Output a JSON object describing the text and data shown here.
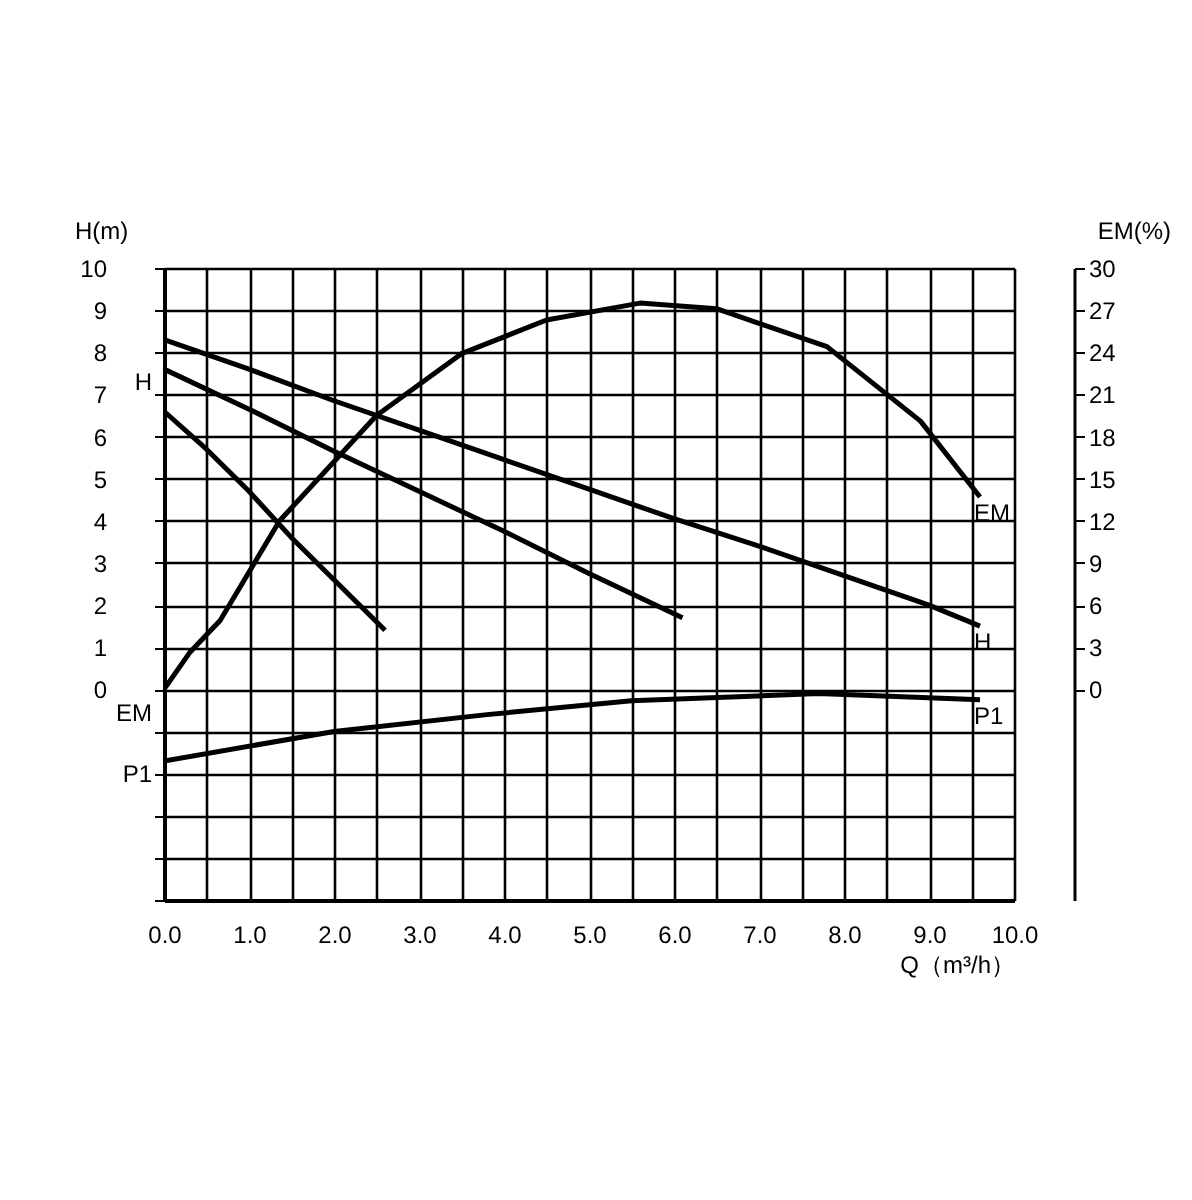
{
  "chart_data": {
    "type": "line",
    "xlabel": "Q（m³/h）",
    "ylabel": "H(m)",
    "y2label": "EM(%)",
    "xlim": [
      0,
      10
    ],
    "ylim": [
      -5,
      10
    ],
    "y2lim": [
      -15,
      30
    ],
    "xticks": [
      {
        "value": 0,
        "label": "0.0"
      },
      {
        "value": 0.5,
        "label": null
      },
      {
        "value": 1,
        "label": "1.0"
      },
      {
        "value": 1.5,
        "label": null
      },
      {
        "value": 2,
        "label": "2.0"
      },
      {
        "value": 2.5,
        "label": null
      },
      {
        "value": 3,
        "label": "3.0"
      },
      {
        "value": 3.5,
        "label": null
      },
      {
        "value": 4,
        "label": "4.0"
      },
      {
        "value": 4.5,
        "label": null
      },
      {
        "value": 5,
        "label": "5.0"
      },
      {
        "value": 5.5,
        "label": null
      },
      {
        "value": 6,
        "label": "6.0"
      },
      {
        "value": 6.5,
        "label": null
      },
      {
        "value": 7,
        "label": "7.0"
      },
      {
        "value": 7.5,
        "label": null
      },
      {
        "value": 8,
        "label": "8.0"
      },
      {
        "value": 8.5,
        "label": null
      },
      {
        "value": 9,
        "label": "9.0"
      },
      {
        "value": 9.5,
        "label": null
      },
      {
        "value": 10,
        "label": "10.0"
      }
    ],
    "yticks": [
      {
        "value": -5,
        "label": null
      },
      {
        "value": -4,
        "label": null
      },
      {
        "value": -3,
        "label": null
      },
      {
        "value": -2,
        "label": null
      },
      {
        "value": -1,
        "label": null
      },
      0,
      1,
      2,
      3,
      4,
      5,
      6,
      7,
      8,
      9,
      10
    ],
    "y2ticks": [
      0,
      3,
      6,
      9,
      12,
      15,
      18,
      21,
      24,
      27,
      30
    ],
    "grid": true,
    "legend": false,
    "marker": "none",
    "line_style": "solid",
    "series": [
      {
        "name": "H",
        "color": "#000000",
        "x": [
          0,
          1,
          2,
          3,
          4,
          5,
          6,
          7,
          8,
          9,
          9.6
        ],
        "values": [
          8.3,
          7.6,
          6.85,
          6.15,
          5.45,
          4.75,
          4.05,
          3.4,
          2.7,
          2.0,
          1.5
        ]
      },
      {
        "color": "#000000",
        "x": [
          0,
          1,
          2,
          3,
          4,
          5,
          6.1
        ],
        "values": [
          7.6,
          6.65,
          5.65,
          4.7,
          3.75,
          2.75,
          1.7
        ]
      },
      {
        "color": "#000000",
        "x": [
          0,
          0.5,
          1,
          1.5,
          2,
          2.6
        ],
        "values": [
          6.6,
          5.7,
          4.7,
          3.6,
          2.6,
          1.4
        ]
      },
      {
        "name": "EM",
        "color": "#000000",
        "axis": "y2",
        "x": [
          0,
          0.3,
          0.66,
          1.36,
          2.5,
          3.5,
          4.5,
          5.6,
          6.5,
          7.8,
          8.9,
          9.6
        ],
        "values": [
          0,
          2.6,
          4.9,
          12,
          19.5,
          23.9,
          26.3,
          27.5,
          27.1,
          24.4,
          19.1,
          13.7
        ]
      },
      {
        "name": "P1",
        "color": "#000000",
        "x": [
          0,
          2,
          3.8,
          5.5,
          7.7,
          9.6
        ],
        "values": [
          -1.7,
          -1.0,
          -0.6,
          -0.27,
          -0.1,
          -0.25
        ]
      }
    ],
    "annotations": [
      "H",
      "EM",
      "P1"
    ]
  }
}
